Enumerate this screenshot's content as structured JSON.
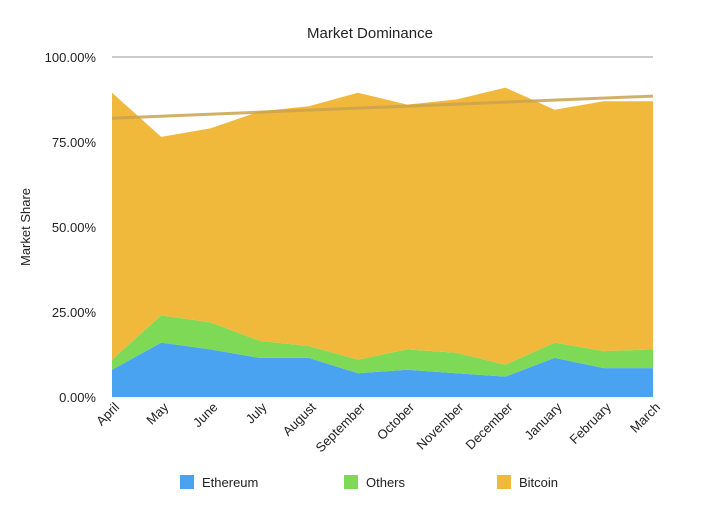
{
  "chart_data": {
    "type": "area",
    "stacked": true,
    "title": "Market Dominance",
    "xlabel": "",
    "ylabel": "Market Share",
    "ylim": [
      0,
      100
    ],
    "yticks": [
      "0.00%",
      "25.00%",
      "50.00%",
      "75.00%",
      "100.00%"
    ],
    "categories": [
      "April",
      "May",
      "June",
      "July",
      "August",
      "September",
      "October",
      "November",
      "December",
      "January",
      "February",
      "March"
    ],
    "series": [
      {
        "name": "Ethereum",
        "color": "#4aa3f0",
        "values": [
          8,
          16,
          14,
          11.5,
          11.5,
          7,
          8,
          7,
          6,
          11.5,
          8.5,
          8.5
        ]
      },
      {
        "name": "Others",
        "color": "#7ed957",
        "values": [
          3,
          8,
          8,
          5,
          3.5,
          4,
          6,
          6,
          3.5,
          4.5,
          5,
          5.5
        ]
      },
      {
        "name": "Bitcoin",
        "color": "#f0b93c",
        "values": [
          78.5,
          52.5,
          57,
          67.5,
          70.5,
          78.5,
          72,
          74.5,
          81.5,
          68.5,
          73.5,
          73
        ]
      }
    ],
    "trendline": {
      "series": "Bitcoin",
      "color": "#c9a24e",
      "start": 82,
      "end": 88.5
    },
    "grid": {
      "horizontal": true,
      "top_line_only": true
    },
    "legend": {
      "position": "bottom"
    }
  }
}
